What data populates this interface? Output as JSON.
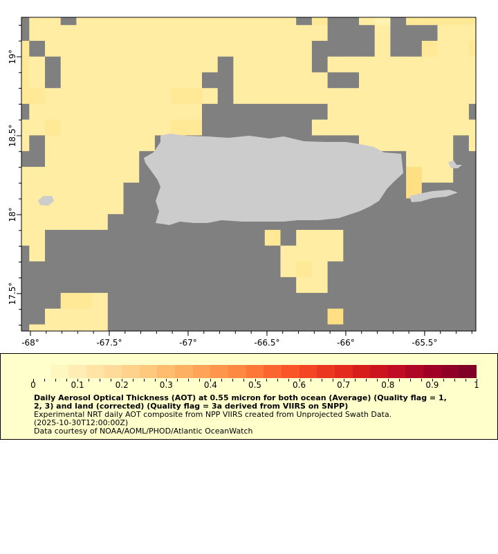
{
  "map": {
    "lon_range": [
      -68.057,
      -65.175
    ],
    "lat_range": [
      17.263,
      19.25
    ],
    "lon_ticks": [
      -68,
      -67.5,
      -67,
      -66.5,
      -66,
      -65.5
    ],
    "lon_tick_labels": [
      "-68°",
      "-67.5°",
      "-67°",
      "-66.5°",
      "-66°",
      "-65.5°"
    ],
    "lat_ticks": [
      19,
      18.5,
      18,
      17.5
    ],
    "lat_tick_labels": [
      "19°",
      "18.5°",
      "18°",
      "17.5°"
    ],
    "colors": {
      "no_data": "#808080",
      "land": "#cccccc",
      "frame": "#000000"
    },
    "aot_levels": {
      "1": 0.08,
      "2": 0.11,
      "3": 0.14,
      "4": 0.17
    },
    "aot_level_colors": {
      "1": "#fff3b2",
      "2": "#ffeda3",
      "3": "#ffe896",
      "4": "#ffdf84"
    },
    "aot_grid": [
      ".22.22222222222222.3..21.33333",
      ".2222222222222222222...2...2223",
      "3.22222222222222222....2..3223",
      "32.2222222222.22222.2222222222",
      "32.222222222..222222..22222222",
      "3322222222332.2222222222222222",
      ".22222222222........222222222.",
      "223222222233.......22222222222",
      "2.2222222.............222222.2",
      "..222222.................222..",
      "22222222.................422..",
      "2222222..................4....",
      "2222222.......................",
      "222222........................",
      "22..............3.222.........",
      ".2...............2222.........",
      ".................232..........",
      "..................22..........",
      "...332........................",
      "..2222..............4.........",
      ".22222........................"
    ]
  },
  "legend": {
    "colorbar_min": 0,
    "colorbar_max": 1,
    "colorbar_colors": [
      "#ffffcc",
      "#fff6c0",
      "#ffedb3",
      "#ffe4a5",
      "#fedb98",
      "#fed28a",
      "#fec97c",
      "#febd6e",
      "#feb062",
      "#fea357",
      "#fd964c",
      "#fd8842",
      "#fc7738",
      "#fb6630",
      "#f95529",
      "#f44524",
      "#ec3720",
      "#e32a1d",
      "#d81e1c",
      "#cc141f",
      "#c00c24",
      "#b00626",
      "#a00026",
      "#900026",
      "#800026"
    ],
    "tick_labels": [
      "0",
      "0.1",
      "0.2",
      "0.3",
      "0.4",
      "0.5",
      "0.6",
      "0.7",
      "0.8",
      "0.9",
      "1"
    ],
    "title_line1": "Daily Aerosol Optical Thickness (AOT) at 0.55 micron for both ocean (Average) (Quality flag = 1,",
    "title_line2": "2, 3) and land (corrected) (Quality flag = 3a derived from VIIRS on SNPP)",
    "description": "Experimental NRT daily AOT composite from NPP VIIRS created from Unprojected Swath Data.",
    "time": "(2025-10-30T12:00:00Z)",
    "credit": "Data courtesy of NOAA/AOML/PHOD/Atlantic OceanWatch"
  }
}
